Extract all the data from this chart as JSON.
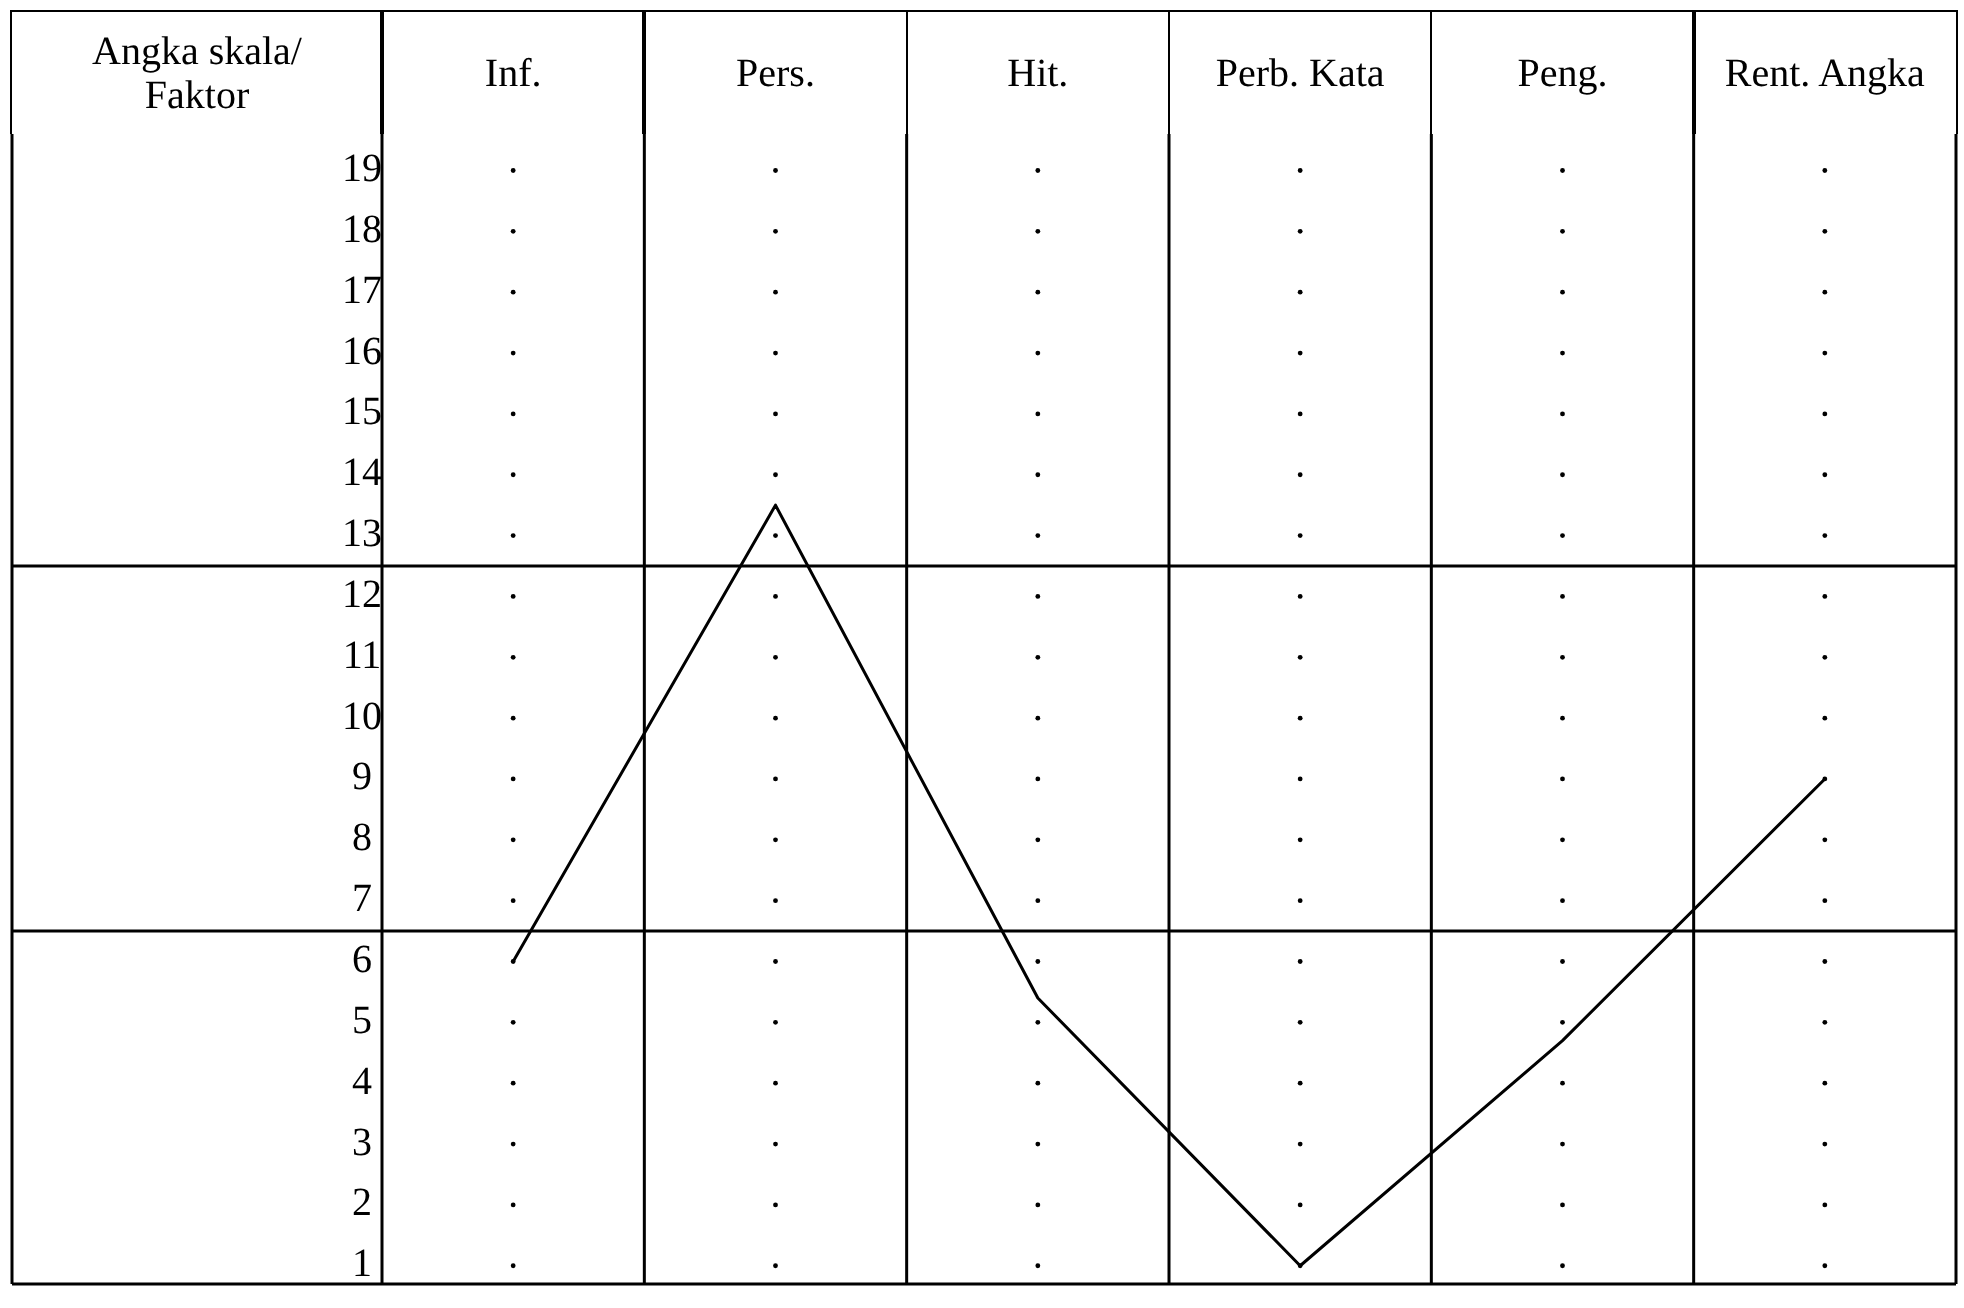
{
  "chart_data": {
    "type": "line",
    "ylabel": "Angka skala/ Faktor",
    "categories": [
      "Inf.",
      "Pers.",
      "Hit.",
      "Perb. Kata",
      "Peng.",
      "Rent. Angka"
    ],
    "series": [
      {
        "color": "#000000",
        "values": [
          6,
          13.5,
          5.4,
          1,
          4.7,
          9
        ]
      }
    ],
    "ylim": [
      0.7,
      19.6
    ],
    "yticks": [
      1,
      2,
      3,
      4,
      5,
      6,
      7,
      8,
      9,
      10,
      11,
      12,
      13,
      14,
      15,
      16,
      17,
      18,
      19
    ],
    "grid": true,
    "legend": false,
    "marker": "none",
    "line_style": "solid",
    "ref_lines": [
      {
        "axis": "y",
        "value": 12.5,
        "color": "#000000"
      },
      {
        "axis": "y",
        "value": 6.5,
        "color": "#000000"
      }
    ]
  }
}
